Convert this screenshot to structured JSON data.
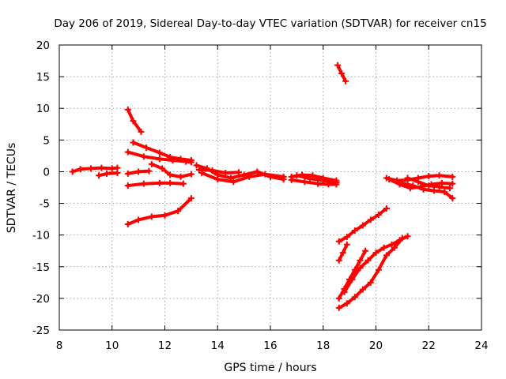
{
  "chart_data": {
    "type": "line",
    "title": "Day 206 of 2019, Sidereal Day-to-day VTEC variation (SDTVAR) for receiver cn15",
    "xlabel": "GPS time / hours",
    "ylabel": "SDTVAR / TECUs",
    "xlim": [
      8,
      24
    ],
    "ylim": [
      -25,
      20
    ],
    "xticks": [
      8,
      10,
      12,
      14,
      16,
      18,
      20,
      22,
      24
    ],
    "yticks": [
      -25,
      -20,
      -15,
      -10,
      -5,
      0,
      5,
      10,
      15,
      20
    ],
    "grid": true,
    "series_color": "#ff0000",
    "series": [
      {
        "name": "s1",
        "x": [
          8.5,
          8.8,
          9.2,
          9.6,
          10.0,
          10.2
        ],
        "y": [
          0.0,
          0.4,
          0.5,
          0.6,
          0.5,
          0.6
        ]
      },
      {
        "name": "s2",
        "x": [
          9.5,
          9.8,
          10.2
        ],
        "y": [
          -0.6,
          -0.3,
          -0.2
        ]
      },
      {
        "name": "s3",
        "x": [
          10.6,
          10.8,
          11.1
        ],
        "y": [
          9.8,
          8.0,
          6.3
        ]
      },
      {
        "name": "s4",
        "x": [
          10.8,
          11.3,
          11.8,
          12.2,
          12.6,
          13.0
        ],
        "y": [
          4.6,
          3.8,
          3.0,
          2.3,
          2.0,
          1.8
        ]
      },
      {
        "name": "s5",
        "x": [
          10.6,
          11.2,
          11.8,
          12.3,
          12.8,
          13.0
        ],
        "y": [
          3.1,
          2.4,
          2.0,
          1.8,
          1.6,
          1.5
        ]
      },
      {
        "name": "s6",
        "x": [
          10.6,
          11.0,
          11.4
        ],
        "y": [
          -0.3,
          0.0,
          0.1
        ]
      },
      {
        "name": "s7",
        "x": [
          11.5,
          11.9,
          12.2,
          12.6,
          13.0
        ],
        "y": [
          1.2,
          0.5,
          -0.5,
          -0.8,
          -0.4
        ]
      },
      {
        "name": "s8",
        "x": [
          10.6,
          11.2,
          11.8,
          12.2,
          12.7
        ],
        "y": [
          -2.2,
          -1.9,
          -1.8,
          -1.8,
          -1.9
        ]
      },
      {
        "name": "s9",
        "x": [
          10.6,
          11.0,
          11.5,
          12.0,
          12.5,
          13.0
        ],
        "y": [
          -8.3,
          -7.6,
          -7.1,
          -6.9,
          -6.2,
          -4.2
        ]
      },
      {
        "name": "s10",
        "x": [
          13.2,
          13.6,
          14.0,
          14.5,
          15.0,
          15.5,
          16.0,
          16.5
        ],
        "y": [
          1.0,
          0.5,
          -0.5,
          -1.0,
          -0.5,
          0.0,
          -0.8,
          -1.2
        ]
      },
      {
        "name": "s11",
        "x": [
          13.4,
          14.0,
          14.6,
          15.2,
          15.8,
          16.5
        ],
        "y": [
          -0.2,
          -1.2,
          -1.6,
          -0.8,
          -0.4,
          -0.8
        ]
      },
      {
        "name": "s12",
        "x": [
          13.3,
          13.8,
          14.3,
          14.8
        ],
        "y": [
          0.3,
          0.2,
          -0.2,
          -0.1
        ]
      },
      {
        "name": "s13",
        "x": [
          16.8,
          17.2,
          17.6,
          18.0,
          18.5
        ],
        "y": [
          -0.8,
          -0.5,
          -0.6,
          -1.0,
          -1.4
        ]
      },
      {
        "name": "s14",
        "x": [
          16.8,
          17.3,
          17.8,
          18.2,
          18.5
        ],
        "y": [
          -1.3,
          -1.6,
          -1.9,
          -2.0,
          -2.0
        ]
      },
      {
        "name": "s15",
        "x": [
          17.0,
          17.5,
          18.0,
          18.5
        ],
        "y": [
          -0.6,
          -1.1,
          -1.4,
          -1.7
        ]
      },
      {
        "name": "s16",
        "x": [
          18.55,
          18.7,
          18.85
        ],
        "y": [
          16.8,
          15.5,
          14.3
        ]
      },
      {
        "name": "s17",
        "x": [
          18.6,
          18.9,
          19.2,
          19.5,
          19.8,
          20.1,
          20.4
        ],
        "y": [
          -11.0,
          -10.3,
          -9.3,
          -8.5,
          -7.6,
          -6.8,
          -5.8
        ]
      },
      {
        "name": "s18",
        "x": [
          18.6,
          18.75,
          18.9
        ],
        "y": [
          -14.0,
          -12.8,
          -11.5
        ]
      },
      {
        "name": "s19",
        "x": [
          18.6,
          18.8,
          19.0,
          19.2,
          19.4,
          19.6
        ],
        "y": [
          -20.0,
          -18.5,
          -17.0,
          -15.5,
          -14.0,
          -12.5
        ]
      },
      {
        "name": "s20",
        "x": [
          18.6,
          18.9,
          19.2,
          19.5,
          19.8,
          20.1,
          20.4,
          20.7,
          21.0
        ],
        "y": [
          -21.5,
          -20.8,
          -19.8,
          -18.6,
          -17.5,
          -15.5,
          -13.2,
          -12.0,
          -10.5
        ]
      },
      {
        "name": "s21",
        "x": [
          18.8,
          19.1,
          19.4,
          19.7,
          20.0,
          20.3,
          20.6,
          20.9,
          21.2
        ],
        "y": [
          -19.0,
          -17.0,
          -15.2,
          -14.0,
          -12.8,
          -12.0,
          -11.5,
          -10.8,
          -10.2
        ]
      },
      {
        "name": "s22",
        "x": [
          20.4,
          20.8,
          21.2,
          21.6,
          22.0,
          22.4,
          22.9
        ],
        "y": [
          -1.0,
          -1.4,
          -1.3,
          -1.0,
          -0.7,
          -0.6,
          -0.8
        ]
      },
      {
        "name": "s23",
        "x": [
          20.5,
          20.9,
          21.3,
          21.7,
          22.1,
          22.5,
          22.9
        ],
        "y": [
          -1.2,
          -2.0,
          -2.6,
          -2.4,
          -2.0,
          -1.8,
          -1.9
        ]
      },
      {
        "name": "s24",
        "x": [
          21.0,
          21.4,
          21.8,
          22.2,
          22.6,
          22.9
        ],
        "y": [
          -1.8,
          -2.2,
          -2.8,
          -3.0,
          -3.2,
          -4.2
        ]
      },
      {
        "name": "s25",
        "x": [
          21.2,
          21.6,
          22.0,
          22.4,
          22.8
        ],
        "y": [
          -1.0,
          -1.6,
          -2.2,
          -2.4,
          -2.6
        ]
      }
    ]
  }
}
